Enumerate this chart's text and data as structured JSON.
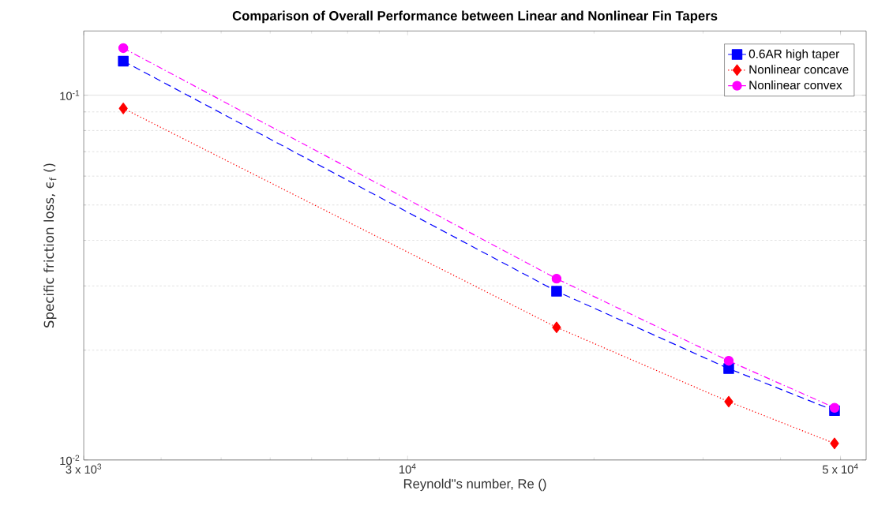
{
  "chart_data": {
    "type": "line",
    "title": "Comparison of Overall Performance between Linear and Nonlinear Fin Tapers",
    "xlabel": "Reynold\"s number, Re ()",
    "ylabel": "Specific friction loss, ϵ$_{f}$ ()",
    "x": [
      3475,
      17400,
      33000,
      48900
    ],
    "series": [
      {
        "name": "0.6AR high taper",
        "color": "#0000ff",
        "marker": "square",
        "line_style": "dashed",
        "values": [
          0.124,
          0.029,
          0.0178,
          0.01365
        ]
      },
      {
        "name": "Nonlinear concave",
        "color": "#ff0000",
        "marker": "diamond",
        "line_style": "dotted",
        "values": [
          0.092,
          0.0231,
          0.01445,
          0.0111
        ]
      },
      {
        "name": "Nonlinear convex",
        "color": "#ff00ff",
        "marker": "circle",
        "line_style": "dashdot",
        "values": [
          0.1346,
          0.0314,
          0.0187,
          0.0139
        ]
      }
    ],
    "log": "xy",
    "xlim": [
      3000,
      55000
    ],
    "ylim": [
      0.01,
      0.15
    ],
    "xticks": [
      {
        "value": 3000,
        "label": "3 x 10$^{3}$"
      },
      {
        "value": 10000,
        "label": "10$^{4}$"
      },
      {
        "value": 50000,
        "label": "5 x 10$^{4}$"
      }
    ],
    "yticks": [
      {
        "value": 0.01,
        "label": "10$^{-2}$"
      },
      {
        "value": 0.1,
        "label": "10$^{-1}$"
      }
    ],
    "grid": "y",
    "legend": "top right"
  }
}
